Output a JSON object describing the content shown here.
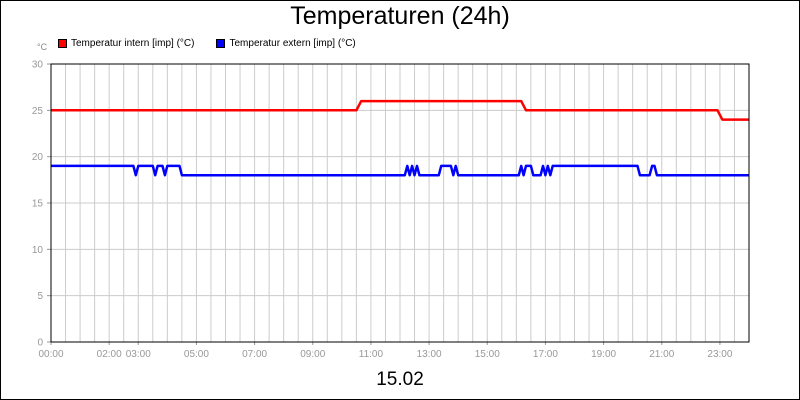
{
  "chart_data": {
    "type": "line",
    "title": "Temperaturen (24h)",
    "subtitle": "15.02",
    "ylabel": "°C",
    "xlabel": "",
    "ylim": [
      0,
      30
    ],
    "xlim": [
      "00:00",
      "24:00"
    ],
    "yticks": [
      0,
      5,
      10,
      15,
      20,
      25,
      30
    ],
    "x_tick_labels": [
      "00:00",
      "02:00",
      "03:00",
      "05:00",
      "07:00",
      "09:00",
      "11:00",
      "13:00",
      "15:00",
      "17:00",
      "19:00",
      "21:00",
      "23:00"
    ],
    "grid": true,
    "legend_position": "top-left",
    "series": [
      {
        "name": "Temperatur intern [imp] (°C)",
        "color": "#ff0000",
        "points": [
          [
            "00:00",
            25
          ],
          [
            "10:30",
            25
          ],
          [
            "10:40",
            26
          ],
          [
            "16:10",
            26
          ],
          [
            "16:20",
            25
          ],
          [
            "22:55",
            25
          ],
          [
            "23:05",
            24
          ],
          [
            "24:00",
            24
          ]
        ]
      },
      {
        "name": "Temperatur extern [imp] (°C)",
        "color": "#0000ff",
        "points": [
          [
            "00:00",
            19
          ],
          [
            "02:50",
            19
          ],
          [
            "02:55",
            18
          ],
          [
            "03:00",
            19
          ],
          [
            "03:30",
            19
          ],
          [
            "03:35",
            18
          ],
          [
            "03:40",
            19
          ],
          [
            "03:50",
            19
          ],
          [
            "03:55",
            18
          ],
          [
            "04:00",
            19
          ],
          [
            "04:25",
            19
          ],
          [
            "04:30",
            18
          ],
          [
            "12:10",
            18
          ],
          [
            "12:15",
            19
          ],
          [
            "12:20",
            18
          ],
          [
            "12:25",
            19
          ],
          [
            "12:30",
            18
          ],
          [
            "12:35",
            19
          ],
          [
            "12:40",
            18
          ],
          [
            "13:20",
            18
          ],
          [
            "13:25",
            19
          ],
          [
            "13:45",
            19
          ],
          [
            "13:50",
            18
          ],
          [
            "13:55",
            19
          ],
          [
            "14:00",
            18
          ],
          [
            "16:05",
            18
          ],
          [
            "16:10",
            19
          ],
          [
            "16:15",
            18
          ],
          [
            "16:20",
            19
          ],
          [
            "16:30",
            19
          ],
          [
            "16:35",
            18
          ],
          [
            "16:50",
            18
          ],
          [
            "16:55",
            19
          ],
          [
            "17:00",
            18
          ],
          [
            "17:05",
            19
          ],
          [
            "17:10",
            18
          ],
          [
            "17:15",
            19
          ],
          [
            "20:10",
            19
          ],
          [
            "20:15",
            18
          ],
          [
            "20:35",
            18
          ],
          [
            "20:40",
            19
          ],
          [
            "20:45",
            19
          ],
          [
            "20:50",
            18
          ],
          [
            "24:00",
            18
          ]
        ]
      }
    ]
  }
}
